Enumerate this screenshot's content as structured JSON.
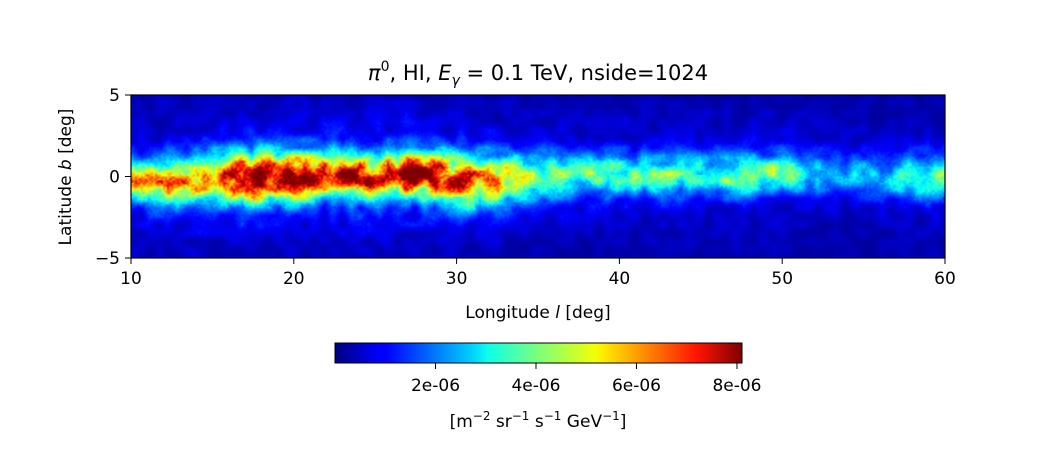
{
  "chart_data": {
    "type": "heatmap",
    "title": "π⁰, HI, E_γ = 0.1 TeV, nside=1024",
    "title_parts": {
      "pi": "π",
      "pi_sup": "0",
      "hi": ", HI, ",
      "E": "E",
      "E_sub": "γ",
      "energy": " = 0.1 TeV, nside=1024"
    },
    "xlabel": "Longitude l [deg]",
    "xlabel_parts": {
      "pre": "Longitude ",
      "var": "l",
      "post": " [deg]"
    },
    "ylabel": "Latitude b [deg]",
    "ylabel_parts": {
      "pre": "Latitude ",
      "var": "b",
      "post": " [deg]"
    },
    "xlim": [
      10,
      60
    ],
    "ylim": [
      -5,
      5
    ],
    "xticks": [
      10,
      20,
      30,
      40,
      50,
      60
    ],
    "xtick_labels": [
      "10",
      "20",
      "30",
      "40",
      "50",
      "60"
    ],
    "yticks": [
      5,
      0,
      -5
    ],
    "ytick_labels": [
      "5",
      "0",
      "−5"
    ],
    "colormap": "jet",
    "colorbar": {
      "orientation": "horizontal",
      "range": [
        0,
        8.1e-06
      ],
      "ticks": [
        2e-06,
        4e-06,
        6e-06,
        8e-06
      ],
      "tick_labels": [
        "2e-06",
        "4e-06",
        "6e-06",
        "8e-06"
      ],
      "label": "[m⁻² sr⁻¹ s⁻¹ GeV⁻¹]",
      "label_parts": {
        "a": "[m",
        "a_sup": "−2",
        "b": " sr",
        "b_sup": "−1",
        "c": " s",
        "c_sup": "−1",
        "d": " GeV",
        "d_sup": "−1",
        "e": "]"
      }
    },
    "emission_profile": {
      "description": "Bright Galactic-plane band near b = 0",
      "longitude": [
        10,
        12,
        14,
        16,
        17.5,
        19,
        20,
        22,
        23,
        25,
        27,
        28.5,
        30,
        31,
        33,
        35,
        38,
        40,
        43,
        45,
        48,
        50,
        52,
        54,
        56,
        58,
        60
      ],
      "peak_value": [
        4.5e-06,
        5e-06,
        5.5e-06,
        6.2e-06,
        7.5e-06,
        6.8e-06,
        7.6e-06,
        6.2e-06,
        8e-06,
        6.5e-06,
        8.1e-06,
        7.6e-06,
        5.8e-06,
        5.6e-06,
        4.6e-06,
        3.6e-06,
        3.3e-06,
        3.4e-06,
        3.4e-06,
        3.3e-06,
        3.6e-06,
        3.6e-06,
        2.6e-06,
        2e-06,
        2.3e-06,
        2.7e-06,
        3e-06
      ],
      "center_latitude": [
        -0.3,
        -0.3,
        -0.2,
        -0.1,
        -0.1,
        0.0,
        0.0,
        0.1,
        0.1,
        0.0,
        0.1,
        0.1,
        -0.2,
        -0.3,
        -0.1,
        0.0,
        0.1,
        0.1,
        0.1,
        0.1,
        0.1,
        0.2,
        0.2,
        0.1,
        0.0,
        0.0,
        0.0
      ],
      "width_deg": [
        0.8,
        0.9,
        0.9,
        1.0,
        1.0,
        0.9,
        0.9,
        0.9,
        0.8,
        0.8,
        0.8,
        0.8,
        1.0,
        1.1,
        1.0,
        0.9,
        0.8,
        0.8,
        0.8,
        0.8,
        0.8,
        0.8,
        0.8,
        0.8,
        0.9,
        0.9,
        0.9
      ],
      "background_value": 2e-07
    }
  }
}
